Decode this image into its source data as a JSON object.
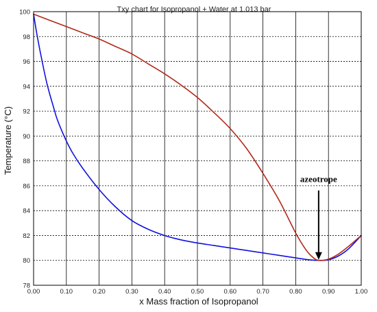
{
  "chart_data": {
    "type": "line",
    "title": "Txy chart for Isopropanol + Water at 1.013 bar",
    "xlabel": "x Mass fraction of Isopropanol",
    "ylabel": "Temperature (°C)",
    "xlim": [
      0,
      1
    ],
    "ylim": [
      78,
      100
    ],
    "xticks": [
      0,
      0.1,
      0.2,
      0.3,
      0.4,
      0.5,
      0.6,
      0.7,
      0.8,
      0.9,
      1.0
    ],
    "xtick_labels": [
      "0.00",
      "0.10",
      "0.20",
      "0.30",
      "0.40",
      "0.50",
      "0.60",
      "0.70",
      "0.80",
      "0.90",
      "1.00"
    ],
    "yticks": [
      78,
      80,
      82,
      84,
      86,
      88,
      90,
      92,
      94,
      96,
      98,
      100
    ],
    "ytick_labels": [
      "78",
      "80",
      "82",
      "84",
      "86",
      "88",
      "90",
      "92",
      "94",
      "96",
      "98",
      "100"
    ],
    "grid": {
      "vertical": "solid",
      "horizontal": "dotted"
    },
    "series": [
      {
        "color": "#1010e0",
        "x": [
          0,
          0.01,
          0.02,
          0.03,
          0.04,
          0.05,
          0.06,
          0.07,
          0.08,
          0.1,
          0.12,
          0.15,
          0.2,
          0.25,
          0.3,
          0.35,
          0.4,
          0.45,
          0.5,
          0.55,
          0.6,
          0.65,
          0.7,
          0.75,
          0.8,
          0.84,
          0.87,
          0.9,
          0.93,
          0.96,
          1.0
        ],
        "y": [
          99.8,
          98.2,
          96.8,
          95.5,
          94.3,
          93.3,
          92.4,
          91.5,
          90.8,
          89.6,
          88.6,
          87.4,
          85.7,
          84.3,
          83.2,
          82.5,
          82.0,
          81.65,
          81.4,
          81.2,
          81.0,
          80.8,
          80.6,
          80.4,
          80.2,
          80.05,
          80.0,
          80.05,
          80.35,
          80.9,
          82.0
        ]
      },
      {
        "color": "#b02818",
        "x": [
          0,
          0.05,
          0.1,
          0.15,
          0.2,
          0.25,
          0.3,
          0.35,
          0.4,
          0.45,
          0.5,
          0.55,
          0.6,
          0.65,
          0.7,
          0.75,
          0.8,
          0.83,
          0.85,
          0.87,
          0.9,
          0.93,
          0.96,
          1.0
        ],
        "y": [
          99.8,
          99.3,
          98.8,
          98.3,
          97.8,
          97.2,
          96.6,
          95.8,
          95.0,
          94.1,
          93.1,
          91.9,
          90.6,
          89.0,
          87.0,
          84.8,
          82.2,
          80.9,
          80.3,
          80.0,
          80.1,
          80.5,
          81.1,
          82.0
        ]
      }
    ],
    "annotations": [
      {
        "text": "azeotrope",
        "arrow_to": [
          0.87,
          80.0
        ]
      }
    ]
  }
}
